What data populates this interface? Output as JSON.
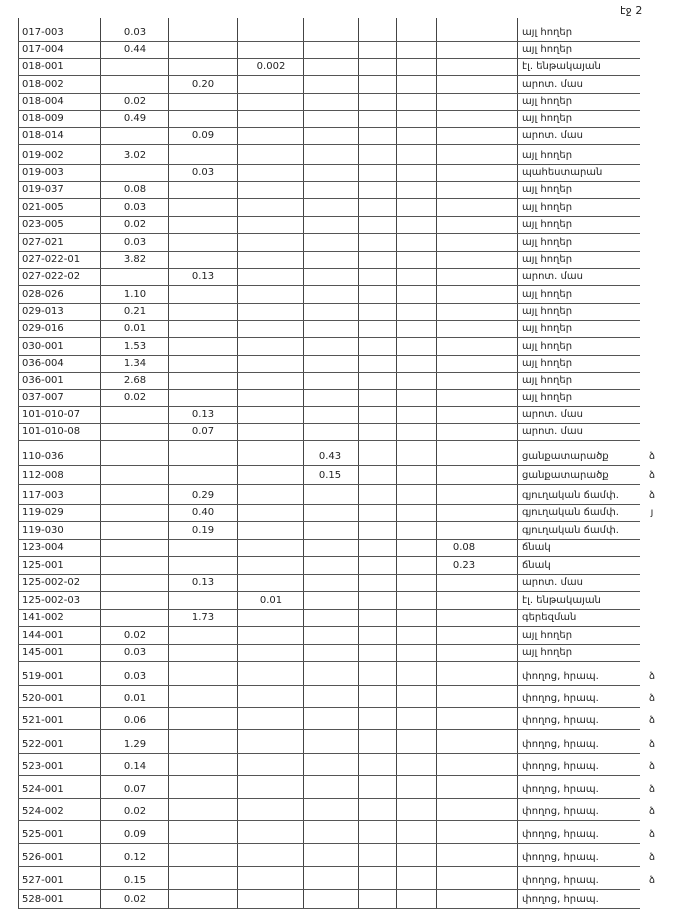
{
  "header": {
    "page": "էջ 2"
  },
  "table": {
    "rows": [
      [
        "017-003",
        "0.03",
        null,
        null,
        null,
        null,
        null,
        "այլ հողեր",
        null
      ],
      [
        "017-004",
        "0.44",
        null,
        null,
        null,
        null,
        null,
        "այլ հողեր",
        null
      ],
      [
        "018-001",
        null,
        null,
        "0.002",
        null,
        null,
        null,
        "էլ. ենթակայան",
        null
      ],
      [
        "018-002",
        null,
        "0.20",
        null,
        null,
        null,
        null,
        "արոտ. մաս",
        null
      ],
      [
        "018-004",
        "0.02",
        null,
        null,
        null,
        null,
        null,
        "այլ հողեր",
        null
      ],
      [
        "018-009",
        "0.49",
        null,
        null,
        null,
        null,
        null,
        "այլ հողեր",
        null
      ],
      [
        "018-014",
        null,
        "0.09",
        null,
        null,
        null,
        null,
        "արոտ. մաս",
        null
      ],
      [
        "019-002",
        "3.02",
        null,
        null,
        null,
        null,
        null,
        "այլ հողեր",
        null
      ],
      [
        "019-003",
        null,
        "0.03",
        null,
        null,
        null,
        null,
        "պահեստարան",
        null
      ],
      [
        "019-037",
        "0.08",
        null,
        null,
        null,
        null,
        null,
        "այլ հողեր",
        null
      ],
      [
        "021-005",
        "0.03",
        null,
        null,
        null,
        null,
        null,
        "այլ հողեր",
        null
      ],
      [
        "023-005",
        "0.02",
        null,
        null,
        null,
        null,
        null,
        "այլ հողեր",
        null
      ],
      [
        "027-021",
        "0.03",
        null,
        null,
        null,
        null,
        null,
        "այլ հողեր",
        null
      ],
      [
        "027-022-01",
        "3.82",
        null,
        null,
        null,
        null,
        null,
        "այլ հողեր",
        null
      ],
      [
        "027-022-02",
        null,
        "0.13",
        null,
        null,
        null,
        null,
        "արոտ. մաս",
        null
      ],
      [
        "028-026",
        "1.10",
        null,
        null,
        null,
        null,
        null,
        "այլ հողեր",
        null
      ],
      [
        "029-013",
        "0.21",
        null,
        null,
        null,
        null,
        null,
        "այլ հողեր",
        null
      ],
      [
        "029-016",
        "0.01",
        null,
        null,
        null,
        null,
        null,
        "այլ հողեր",
        null
      ],
      [
        "030-001",
        "1.53",
        null,
        null,
        null,
        null,
        null,
        "այլ հողեր",
        null
      ],
      [
        "036-004",
        "1.34",
        null,
        null,
        null,
        null,
        null,
        "այլ հողեր",
        null
      ],
      [
        "036-001",
        "2.68",
        null,
        null,
        null,
        null,
        null,
        "այլ հողեր",
        null
      ],
      [
        "037-007",
        "0.02",
        null,
        null,
        null,
        null,
        null,
        "այլ հողեր",
        null
      ],
      [
        "101-010-07",
        null,
        "0.13",
        null,
        null,
        null,
        null,
        "արոտ. մաս",
        null
      ],
      [
        "101-010-08",
        null,
        "0.07",
        null,
        null,
        null,
        null,
        "արոտ. մաս",
        null
      ],
      [
        "110-036",
        null,
        null,
        null,
        "0.43",
        null,
        null,
        "ցանքատարածք",
        "ձ"
      ],
      [
        "112-008",
        null,
        null,
        null,
        "0.15",
        null,
        null,
        "ցանքատարածք",
        "ձ"
      ],
      [
        "117-003",
        null,
        "0.29",
        null,
        null,
        null,
        null,
        "գյուղական ճամփ.",
        "ձ"
      ],
      [
        "119-029",
        null,
        "0.40",
        null,
        null,
        null,
        null,
        "գյուղական ճամփ.",
        "յ"
      ],
      [
        "119-030",
        null,
        "0.19",
        null,
        null,
        null,
        null,
        "գյուղական ճամփ.",
        null
      ],
      [
        "123-004",
        null,
        null,
        null,
        null,
        null,
        "0.08",
        "ճնակ",
        null
      ],
      [
        "125-001",
        null,
        null,
        null,
        null,
        null,
        "0.23",
        "ճնակ",
        null
      ],
      [
        "125-002-02",
        null,
        "0.13",
        null,
        null,
        null,
        null,
        "արոտ. մաս",
        null
      ],
      [
        "125-002-03",
        null,
        null,
        "0.01",
        null,
        null,
        null,
        "էլ. ենթակայան",
        null
      ],
      [
        "141-002",
        null,
        "1.73",
        null,
        null,
        null,
        null,
        "գերեզման",
        null
      ],
      [
        "144-001",
        "0.02",
        null,
        null,
        null,
        null,
        null,
        "այլ հողեր",
        null
      ],
      [
        "145-001",
        "0.03",
        null,
        null,
        null,
        null,
        null,
        "այլ հողեր",
        null
      ],
      [
        "519-001",
        "0.03",
        null,
        null,
        null,
        null,
        null,
        "փողոց, հրապ.",
        "ձ"
      ],
      [
        "520-001",
        "0.01",
        null,
        null,
        null,
        null,
        null,
        "փողոց, հրապ.",
        "ձ"
      ],
      [
        "521-001",
        "0.06",
        null,
        null,
        null,
        null,
        null,
        "փողոց, հրապ.",
        "ձ"
      ],
      [
        "522-001",
        "1.29",
        null,
        null,
        null,
        null,
        null,
        "փողոց, հրապ.",
        "ձ"
      ],
      [
        "523-001",
        "0.14",
        null,
        null,
        null,
        null,
        null,
        "փողոց, հրապ.",
        "ձ"
      ],
      [
        "524-001",
        "0.07",
        null,
        null,
        null,
        null,
        null,
        "փողոց, հրապ.",
        "ձ"
      ],
      [
        "524-002",
        "0.02",
        null,
        null,
        null,
        null,
        null,
        "փողոց, հրապ.",
        "ձ"
      ],
      [
        "525-001",
        "0.09",
        null,
        null,
        null,
        null,
        null,
        "փողոց, հրապ.",
        "ձ"
      ],
      [
        "526-001",
        "0.12",
        null,
        null,
        null,
        null,
        null,
        "փողոց, հրապ.",
        "ձ"
      ],
      [
        "527-001",
        "0.15",
        null,
        null,
        null,
        null,
        null,
        "փողոց, հրապ.",
        "ձ"
      ],
      [
        "528-001",
        "0.02",
        null,
        null,
        null,
        null,
        null,
        "փողոց, հրապ.",
        null
      ]
    ]
  }
}
